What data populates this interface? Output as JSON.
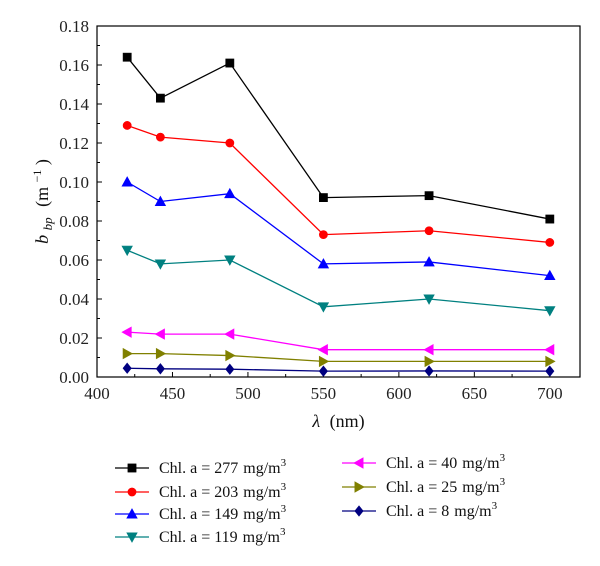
{
  "chart_data": {
    "type": "line",
    "xlabel": {
      "var": "λ",
      "unit": "(nm)"
    },
    "ylabel": {
      "var": "b",
      "sub": "bp",
      "unit_open": "(m",
      "unit_exp": "−1",
      "unit_close": ")"
    },
    "xlim": [
      400,
      720
    ],
    "ylim": [
      0,
      0.18
    ],
    "xticks": [
      "400",
      "450",
      "500",
      "550",
      "600",
      "650",
      "700"
    ],
    "yticks": [
      "0.00",
      "0.02",
      "0.04",
      "0.06",
      "0.08",
      "0.10",
      "0.12",
      "0.14",
      "0.16",
      "0.18"
    ],
    "grid": false,
    "legend_position": "bottom",
    "legend_unit": "mg/m",
    "legend_unit_exp": "3",
    "x": [
      420,
      442,
      488,
      550,
      620,
      700
    ],
    "series": [
      {
        "name": "Chl. a = 277 mg/m3",
        "label_prefix": "Chl. a = 277",
        "color": "#000000",
        "marker": "square",
        "values": [
          0.164,
          0.143,
          0.161,
          0.092,
          0.093,
          0.081
        ]
      },
      {
        "name": "Chl. a = 203 mg/m3",
        "label_prefix": "Chl. a = 203",
        "color": "#ff0000",
        "marker": "circle",
        "values": [
          0.129,
          0.123,
          0.12,
          0.073,
          0.075,
          0.069
        ]
      },
      {
        "name": "Chl. a = 149 mg/m3",
        "label_prefix": "Chl. a = 149",
        "color": "#0000ff",
        "marker": "triangle-up",
        "values": [
          0.1,
          0.09,
          0.094,
          0.058,
          0.059,
          0.052
        ]
      },
      {
        "name": "Chl. a = 119 mg/m3",
        "label_prefix": "Chl. a = 119",
        "color": "#008080",
        "marker": "triangle-down",
        "values": [
          0.065,
          0.058,
          0.06,
          0.036,
          0.04,
          0.034
        ]
      },
      {
        "name": "Chl. a = 40 mg/m3",
        "label_prefix": "Chl. a = 40",
        "color": "#ff00ff",
        "marker": "triangle-left",
        "values": [
          0.023,
          0.022,
          0.022,
          0.014,
          0.014,
          0.014
        ]
      },
      {
        "name": "Chl. a = 25 mg/m3",
        "label_prefix": "Chl. a = 25",
        "color": "#808000",
        "marker": "triangle-right",
        "values": [
          0.012,
          0.012,
          0.011,
          0.008,
          0.008,
          0.008
        ]
      },
      {
        "name": "Chl. a = 8 mg/m3",
        "label_prefix": "Chl. a = 8",
        "color": "#000080",
        "marker": "diamond",
        "values": [
          0.0045,
          0.0042,
          0.004,
          0.003,
          0.0031,
          0.003
        ]
      }
    ]
  }
}
